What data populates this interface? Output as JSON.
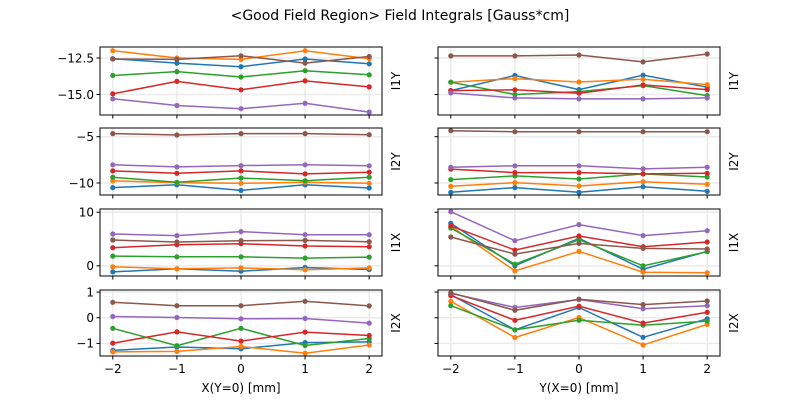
{
  "chart_data": {
    "type": "line",
    "title": "<Good Field Region> Field Integrals [Gauss*cm]",
    "series_colors": [
      "#1f77b4",
      "#ff7f0e",
      "#2ca02c",
      "#d62728",
      "#9467bd",
      "#8c564b"
    ],
    "grid": true,
    "columns": [
      {
        "xlabel": "X(Y=0) [mm]",
        "x": [
          -2,
          -1,
          0,
          1,
          2
        ],
        "xlim": [
          -2.2,
          2.2
        ],
        "xticks": [
          "−2",
          "−1",
          "0",
          "1",
          "2"
        ]
      },
      {
        "xlabel": "Y(X=0) [mm]",
        "x": [
          -2,
          -1,
          0,
          1,
          2
        ],
        "xlim": [
          -2.2,
          2.2
        ],
        "xticks": [
          "−2",
          "−1",
          "0",
          "1",
          "2"
        ]
      }
    ],
    "rows": [
      {
        "ylabel": "I1Y",
        "ylim": [
          -16.4,
          -11.75
        ],
        "yticks": [
          {
            "value": -12.5,
            "label": "−12.5"
          },
          {
            "value": -15.0,
            "label": "−15.0"
          }
        ],
        "panels": [
          {
            "series": [
              [
                -12.55,
                -12.85,
                -13.1,
                -12.57,
                -12.9
              ],
              [
                -12.0,
                -12.5,
                -12.6,
                -12.0,
                -12.55
              ],
              [
                -13.7,
                -13.43,
                -13.8,
                -13.37,
                -13.65
              ],
              [
                -14.95,
                -14.1,
                -14.68,
                -14.07,
                -14.48
              ],
              [
                -15.29,
                -15.75,
                -15.97,
                -15.6,
                -16.2
              ],
              [
                -12.57,
                -12.6,
                -12.35,
                -12.85,
                -12.4
              ]
            ]
          },
          {
            "series": [
              [
                -14.73,
                -13.7,
                -14.66,
                -13.68,
                -14.5
              ],
              [
                -14.16,
                -13.91,
                -14.14,
                -13.95,
                -14.32
              ],
              [
                -14.16,
                -15.0,
                -14.8,
                -14.39,
                -15.07
              ],
              [
                -14.73,
                -14.68,
                -14.91,
                -14.34,
                -14.66
              ],
              [
                -14.89,
                -15.23,
                -15.3,
                -15.3,
                -15.23
              ],
              [
                -12.36,
                -12.36,
                -12.3,
                -12.77,
                -12.23
              ]
            ]
          }
        ]
      },
      {
        "ylabel": "I2Y",
        "ylim": [
          -11.3,
          -4.06
        ],
        "yticks": [
          {
            "value": -5,
            "label": "−5"
          },
          {
            "value": -10,
            "label": "−10"
          }
        ],
        "panels": [
          {
            "series": [
              [
                -10.5,
                -10.2,
                -10.8,
                -10.2,
                -10.54
              ],
              [
                -9.78,
                -9.96,
                -10.04,
                -9.93,
                -10.04
              ],
              [
                -9.38,
                -9.93,
                -9.46,
                -9.75,
                -9.38
              ],
              [
                -8.7,
                -8.95,
                -8.7,
                -9.02,
                -8.84
              ],
              [
                -8.04,
                -8.26,
                -8.12,
                -8.04,
                -8.15
              ],
              [
                -4.67,
                -4.82,
                -4.67,
                -4.67,
                -4.78
              ]
            ]
          },
          {
            "series": [
              [
                -11.01,
                -10.5,
                -11.01,
                -10.4,
                -10.9
              ],
              [
                -10.36,
                -9.96,
                -10.33,
                -9.86,
                -10.14
              ],
              [
                -9.64,
                -9.24,
                -9.57,
                -9.02,
                -9.35
              ],
              [
                -8.5,
                -8.88,
                -8.88,
                -9.02,
                -8.95
              ],
              [
                -8.3,
                -8.15,
                -8.15,
                -8.48,
                -8.3
              ],
              [
                -4.35,
                -4.46,
                -4.46,
                -4.46,
                -4.46
              ]
            ]
          }
        ]
      },
      {
        "ylabel": "I1X",
        "ylim": [
          -1.9,
          10.6
        ],
        "yticks": [
          {
            "value": 10,
            "label": "10"
          },
          {
            "value": 0,
            "label": "0"
          }
        ],
        "panels": [
          {
            "series": [
              [
                -1.13,
                -0.56,
                -1.0,
                -0.31,
                -0.69
              ],
              [
                -0.19,
                -0.56,
                -0.38,
                -0.75,
                -0.38
              ],
              [
                1.81,
                1.69,
                1.69,
                1.44,
                1.63
              ],
              [
                3.38,
                3.94,
                4.13,
                3.69,
                3.56
              ],
              [
                5.94,
                5.63,
                6.38,
                5.81,
                5.81
              ],
              [
                4.81,
                4.44,
                4.69,
                4.75,
                4.5
              ]
            ]
          },
          {
            "series": [
              [
                7.94,
                0.0,
                5.13,
                -0.63,
                2.69
              ],
              [
                7.38,
                -0.94,
                2.69,
                -1.19,
                -1.31
              ],
              [
                7.06,
                0.31,
                4.88,
                0.0,
                2.63
              ],
              [
                7.44,
                2.94,
                5.56,
                3.56,
                4.44
              ],
              [
                10.1,
                4.69,
                7.69,
                5.63,
                6.56
              ],
              [
                5.38,
                2.19,
                4.19,
                3.25,
                3.13
              ]
            ]
          }
        ]
      },
      {
        "ylabel": "I2X",
        "ylim": [
          -1.49,
          1.08
        ],
        "yticks": [
          {
            "value": 1,
            "label": "1"
          },
          {
            "value": 0,
            "label": "0"
          },
          {
            "value": -1,
            "label": "−1"
          }
        ],
        "panels": [
          {
            "series": [
              [
                -1.27,
                -1.14,
                -1.21,
                -0.97,
                -0.94
              ],
              [
                -1.33,
                -1.31,
                -1.12,
                -1.38,
                -1.06
              ],
              [
                -0.41,
                -1.09,
                -0.41,
                -1.08,
                -0.81
              ],
              [
                -0.99,
                -0.55,
                -0.91,
                -0.56,
                -0.69
              ],
              [
                0.05,
                0.01,
                -0.04,
                -0.03,
                -0.21
              ],
              [
                0.6,
                0.47,
                0.47,
                0.64,
                0.46
              ]
            ]
          },
          {
            "series": [
              [
                0.9,
                -0.47,
                0.4,
                -0.76,
                -0.04
              ],
              [
                0.64,
                -0.77,
                0.01,
                -1.06,
                -0.26
              ],
              [
                0.47,
                -0.47,
                -0.1,
                -0.29,
                -0.13
              ],
              [
                0.86,
                -0.1,
                0.45,
                -0.21,
                0.21
              ],
              [
                0.95,
                0.4,
                0.71,
                0.35,
                0.47
              ],
              [
                0.97,
                0.29,
                0.72,
                0.51,
                0.65
              ]
            ]
          }
        ]
      }
    ]
  }
}
